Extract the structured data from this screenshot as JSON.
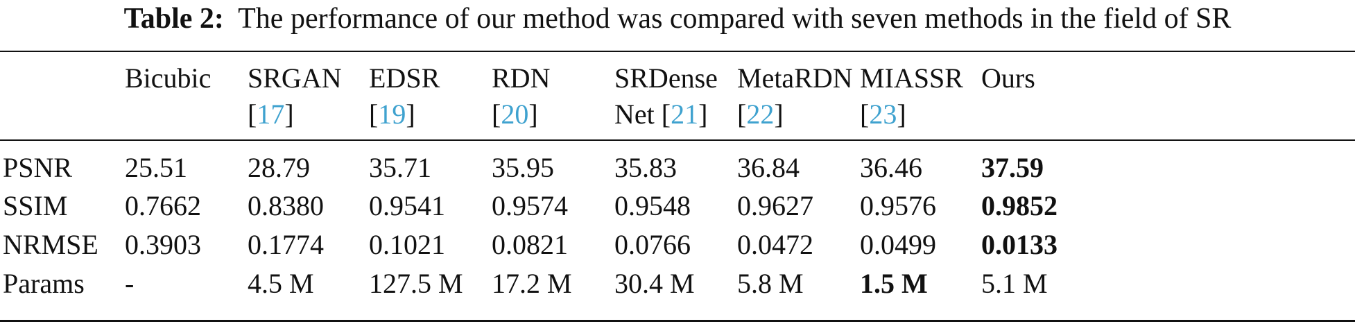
{
  "caption": {
    "label": "Table 2:",
    "text": "The performance of our method was compared with seven methods in the field of SR"
  },
  "columns": [
    {
      "line1": "Bicubic",
      "line2_text": "",
      "cite": ""
    },
    {
      "line1": "SRGAN",
      "line2_text": "",
      "cite": "17"
    },
    {
      "line1": "EDSR",
      "line2_text": "",
      "cite": "19"
    },
    {
      "line1": "RDN",
      "line2_text": "",
      "cite": "20"
    },
    {
      "line1": "SRDense",
      "line2_text": "Net ",
      "cite": "21"
    },
    {
      "line1": "MetaRDN",
      "line2_text": "",
      "cite": "22"
    },
    {
      "line1": "MIASSR",
      "line2_text": "",
      "cite": "23"
    },
    {
      "line1": "Ours",
      "line2_text": "",
      "cite": ""
    }
  ],
  "rows": [
    {
      "label": "PSNR",
      "values": [
        "25.51",
        "28.79",
        "35.71",
        "35.95",
        "35.83",
        "36.84",
        "36.46",
        "37.59"
      ],
      "bold_index": 7
    },
    {
      "label": "SSIM",
      "values": [
        "0.7662",
        "0.8380",
        "0.9541",
        "0.9574",
        "0.9548",
        "0.9627",
        "0.9576",
        "0.9852"
      ],
      "bold_index": 7
    },
    {
      "label": "NRMSE",
      "values": [
        "0.3903",
        "0.1774",
        "0.1021",
        "0.0821",
        "0.0766",
        "0.0472",
        "0.0499",
        "0.0133"
      ],
      "bold_index": 7
    },
    {
      "label": "Params",
      "values": [
        "-",
        "4.5 M",
        "127.5 M",
        "17.2 M",
        "30.4 M",
        "5.8 M",
        "1.5 M",
        "5.1 M"
      ],
      "bold_index": 6
    }
  ]
}
